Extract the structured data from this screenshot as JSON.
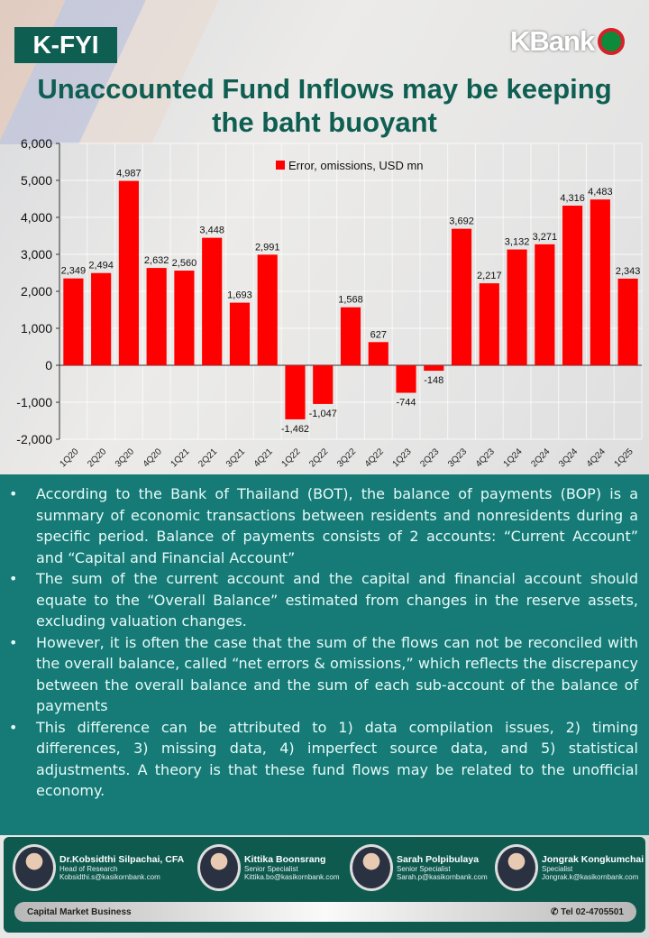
{
  "header": {
    "badge": "K-FYI",
    "brand": "KBank",
    "title_line1": "Unaccounted Fund Inflows may be keeping",
    "title_line2": "the baht buoyant"
  },
  "chart_data": {
    "type": "bar",
    "title": "Unaccounted Fund Inflows may be keeping the baht buoyant",
    "categories": [
      "1Q20",
      "2Q20",
      "3Q20",
      "4Q20",
      "1Q21",
      "2Q21",
      "3Q21",
      "4Q21",
      "1Q22",
      "2Q22",
      "3Q22",
      "4Q22",
      "1Q23",
      "2Q23",
      "3Q23",
      "4Q23",
      "1Q24",
      "2Q24",
      "3Q24",
      "4Q24",
      "1Q25"
    ],
    "series": [
      {
        "name": "Error, omissions, USD mn",
        "values": [
          2349,
          2494,
          4987,
          2632,
          2560,
          3448,
          1693,
          2991,
          -1462,
          -1047,
          1568,
          627,
          -744,
          -148,
          3692,
          2217,
          3132,
          3271,
          4316,
          4483,
          2343
        ],
        "color": "#ff0000"
      }
    ],
    "ylim": [
      -2000,
      6000
    ],
    "yticks": [
      -2000,
      -1000,
      0,
      1000,
      2000,
      3000,
      4000,
      5000,
      6000
    ],
    "grid": true,
    "legend": "top-center",
    "data_labels": true
  },
  "bullets": [
    "According to the Bank of Thailand (BOT), the balance of payments (BOP) is a summary of economic transactions between residents and nonresidents during a specific period. Balance of payments consists of 2 accounts: “Current Account”  and “Capital and Financial Account”",
    "The sum of the current account and the capital and financial account should equate to the “Overall Balance” estimated from changes in the reserve assets, excluding valuation changes.",
    "However, it is often the case that the sum of the flows can not be reconciled with the overall balance, called “net errors & omissions,” which reflects the discrepancy between the overall balance and the sum of each sub-account of the balance of payments",
    "This difference can be attributed to 1) data compilation issues, 2) timing differences, 3) missing data, 4) imperfect source data, and 5) statistical adjustments. A theory is that these fund flows may be related to the unofficial economy."
  ],
  "footer": {
    "people": [
      {
        "name": "Dr.Kobsidthi Silpachai, CFA",
        "role": "Head of Research",
        "email": "Kobsidthi.s@kasikornbank.com"
      },
      {
        "name": "Kittika Boonsrang",
        "role": "Senior Specialist",
        "email": "Kittika.bo@kasikornbank.com"
      },
      {
        "name": "Sarah Polpibulaya",
        "role": "Senior Specialist",
        "email": "Sarah.p@kasikornbank.com"
      },
      {
        "name": "Jongrak Kongkumchai",
        "role": "Specialist",
        "email": "Jongrak.k@kasikornbank.com"
      }
    ],
    "unit": "Capital Market Business",
    "phone": "Tel 02-4705501",
    "phone_icon": "phone-icon"
  }
}
